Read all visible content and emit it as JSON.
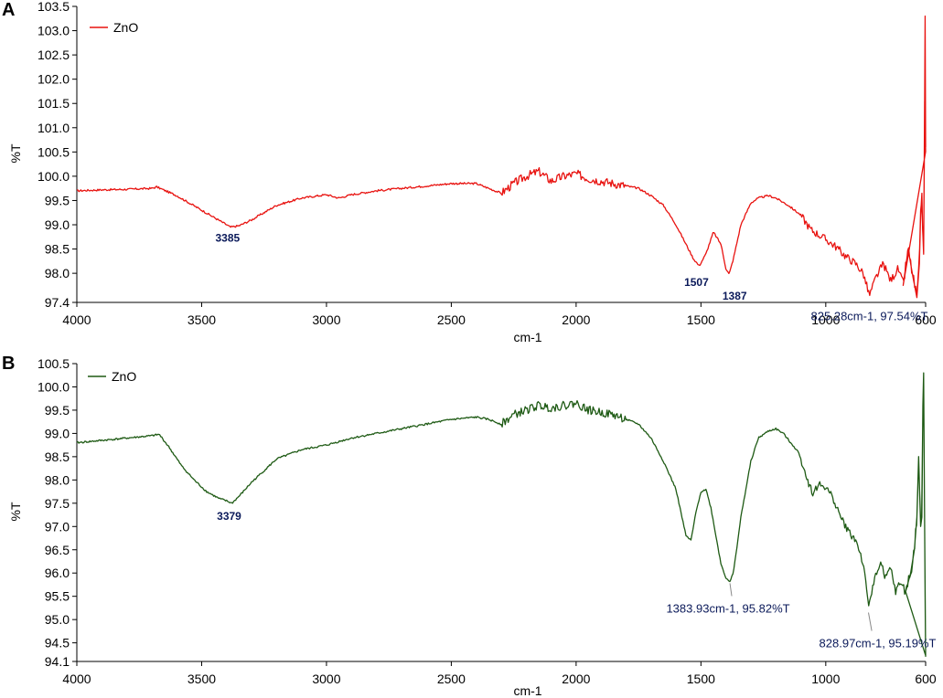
{
  "panels": [
    {
      "letter": "A",
      "ylabel": "%T",
      "xlabel": "cm-1",
      "legend": "ZnO",
      "color": "#e8120f",
      "annotations": [
        {
          "text": "3385",
          "wn": 3385,
          "bold": true
        },
        {
          "text": "1507",
          "wn": 1507,
          "bold": true
        },
        {
          "text": "1387",
          "wn": 1387,
          "bold": true
        },
        {
          "text": "825.28cm-1, 97.54%T",
          "wn": 825.28,
          "bold": false
        }
      ]
    },
    {
      "letter": "B",
      "ylabel": "%T",
      "xlabel": "cm-1",
      "legend": "ZnO",
      "color": "#1e5a14",
      "annotations": [
        {
          "text": "3379",
          "wn": 3379,
          "bold": true
        },
        {
          "text": "1383.93cm-1, 95.82%T",
          "wn": 1383.93,
          "bold": false
        },
        {
          "text": "828.97cm-1, 95.19%T",
          "wn": 828.97,
          "bold": false
        }
      ]
    }
  ],
  "chart_data": [
    {
      "type": "line",
      "title": "",
      "xlabel": "cm-1",
      "ylabel": "%T",
      "xlim": [
        4000,
        600
      ],
      "ylim": [
        97.4,
        103.5
      ],
      "x_ticks": [
        4000,
        3500,
        3000,
        2500,
        2000,
        1500,
        1000,
        600
      ],
      "y_ticks": [
        "97.4",
        "98.0",
        "98.5",
        "99.0",
        "99.5",
        "100.0",
        "100.5",
        "101.0",
        "101.5",
        "102.0",
        "102.5",
        "103.0",
        "103.5"
      ],
      "legend_position": "top-left",
      "grid": false,
      "series": [
        {
          "name": "ZnO",
          "x": [
            4000,
            3900,
            3800,
            3700,
            3680,
            3600,
            3500,
            3450,
            3400,
            3385,
            3350,
            3300,
            3250,
            3200,
            3100,
            3000,
            2950,
            2900,
            2800,
            2700,
            2600,
            2500,
            2400,
            2350,
            2300,
            2250,
            2200,
            2150,
            2100,
            2050,
            2000,
            1950,
            1900,
            1850,
            1800,
            1750,
            1700,
            1650,
            1600,
            1560,
            1530,
            1507,
            1480,
            1450,
            1420,
            1400,
            1387,
            1370,
            1340,
            1300,
            1270,
            1230,
            1200,
            1150,
            1100,
            1060,
            1030,
            1000,
            960,
            920,
            880,
            850,
            825,
            800,
            770,
            740,
            710,
            690,
            670,
            650,
            635,
            625,
            620,
            615,
            612,
            608,
            605,
            602,
            600
          ],
          "y": [
            99.7,
            99.72,
            99.73,
            99.75,
            99.78,
            99.6,
            99.3,
            99.15,
            99.0,
            98.95,
            98.98,
            99.1,
            99.25,
            99.4,
            99.55,
            99.62,
            99.55,
            99.62,
            99.7,
            99.75,
            99.8,
            99.85,
            99.85,
            99.75,
            99.65,
            99.85,
            100.0,
            100.1,
            99.9,
            100.0,
            100.05,
            99.95,
            99.9,
            99.85,
            99.8,
            99.75,
            99.6,
            99.4,
            99.0,
            98.6,
            98.3,
            98.15,
            98.4,
            98.85,
            98.6,
            98.1,
            97.98,
            98.3,
            99.0,
            99.45,
            99.55,
            99.6,
            99.55,
            99.4,
            99.2,
            98.9,
            98.8,
            98.7,
            98.55,
            98.35,
            98.2,
            98.0,
            97.54,
            97.9,
            98.2,
            97.85,
            98.1,
            97.75,
            98.5,
            97.9,
            97.5,
            98.2,
            99.2,
            99.65,
            98.9,
            98.5,
            100.5,
            103.3,
            100.6
          ]
        }
      ]
    },
    {
      "type": "line",
      "title": "",
      "xlabel": "cm-1",
      "ylabel": "%T",
      "xlim": [
        4000,
        600
      ],
      "ylim": [
        94.1,
        100.5
      ],
      "x_ticks": [
        4000,
        3500,
        3000,
        2500,
        2000,
        1500,
        1000,
        600
      ],
      "y_ticks": [
        "94.1",
        "94.5",
        "95.0",
        "95.5",
        "96.0",
        "96.5",
        "97.0",
        "97.5",
        "98.0",
        "98.5",
        "99.0",
        "99.5",
        "100.0",
        "100.5"
      ],
      "legend_position": "top-left",
      "grid": false,
      "series": [
        {
          "name": "ZnO",
          "x": [
            4000,
            3900,
            3800,
            3700,
            3670,
            3630,
            3580,
            3530,
            3480,
            3430,
            3400,
            3379,
            3350,
            3300,
            3250,
            3200,
            3100,
            3000,
            2900,
            2800,
            2700,
            2600,
            2500,
            2400,
            2350,
            2300,
            2250,
            2200,
            2150,
            2100,
            2050,
            2000,
            1950,
            1900,
            1850,
            1800,
            1750,
            1700,
            1650,
            1600,
            1580,
            1560,
            1540,
            1520,
            1500,
            1480,
            1460,
            1440,
            1420,
            1400,
            1383.93,
            1370,
            1340,
            1300,
            1270,
            1230,
            1200,
            1170,
            1140,
            1110,
            1090,
            1070,
            1050,
            1030,
            1000,
            970,
            940,
            910,
            880,
            860,
            840,
            828.97,
            815,
            800,
            780,
            760,
            740,
            720,
            700,
            680,
            660,
            645,
            635,
            628,
            620,
            615,
            611,
            608,
            605,
            602,
            600
          ],
          "y": [
            98.8,
            98.85,
            98.9,
            98.95,
            98.98,
            98.7,
            98.3,
            98.0,
            97.75,
            97.6,
            97.55,
            97.5,
            97.65,
            97.95,
            98.2,
            98.45,
            98.65,
            98.75,
            98.9,
            99.0,
            99.1,
            99.2,
            99.3,
            99.35,
            99.3,
            99.2,
            99.4,
            99.5,
            99.6,
            99.55,
            99.6,
            99.65,
            99.5,
            99.45,
            99.4,
            99.3,
            99.2,
            98.9,
            98.4,
            97.8,
            97.3,
            96.8,
            96.7,
            97.3,
            97.75,
            97.8,
            97.4,
            96.8,
            96.2,
            95.9,
            95.82,
            96.0,
            97.2,
            98.4,
            98.9,
            99.05,
            99.1,
            99.0,
            98.8,
            98.6,
            98.3,
            97.95,
            97.7,
            97.9,
            97.85,
            97.6,
            97.2,
            96.9,
            96.7,
            96.4,
            95.9,
            95.19,
            95.6,
            96.0,
            96.2,
            95.9,
            96.1,
            95.6,
            95.8,
            95.6,
            96.0,
            96.5,
            97.2,
            98.5,
            97.0,
            97.2,
            99.6,
            100.3,
            97.8,
            95.5,
            94.2
          ]
        }
      ]
    }
  ]
}
